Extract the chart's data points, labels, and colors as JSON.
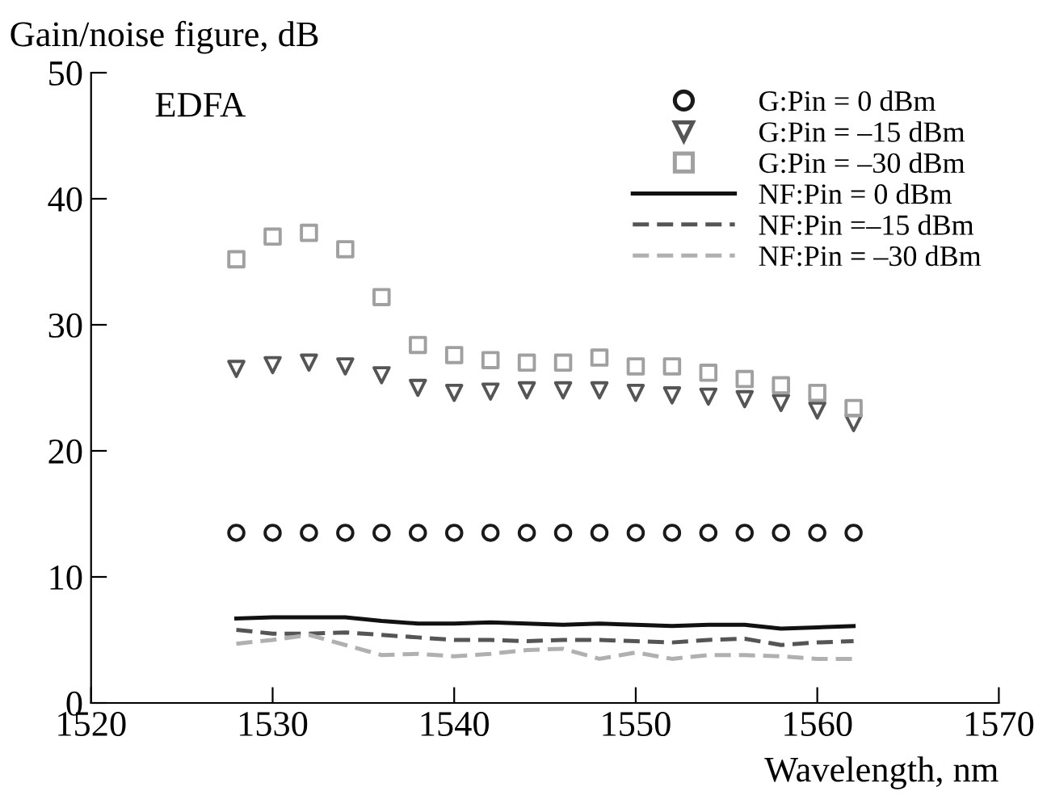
{
  "chart_data": {
    "type": "scatter",
    "xlabel": "Wavelength, nm",
    "ylabel": "Gain/noise figure, dB",
    "annotations": [
      "EDFA"
    ],
    "x": [
      1528,
      1530,
      1532,
      1534,
      1536,
      1538,
      1540,
      1542,
      1544,
      1546,
      1548,
      1550,
      1552,
      1554,
      1556,
      1558,
      1560,
      1562
    ],
    "xlim": [
      1520,
      1570
    ],
    "xticks": [
      1520,
      1530,
      1540,
      1550,
      1560,
      1570
    ],
    "ylim": [
      0,
      50
    ],
    "yticks": [
      0,
      10,
      20,
      30,
      40,
      50
    ],
    "grid": false,
    "legend": "top right",
    "series": [
      {
        "name": "G:Pin = 0 dBm",
        "marker": "circle",
        "color": "#1a1a1a",
        "values": [
          13.5,
          13.5,
          13.5,
          13.5,
          13.5,
          13.5,
          13.5,
          13.5,
          13.5,
          13.5,
          13.5,
          13.5,
          13.5,
          13.5,
          13.5,
          13.5,
          13.5,
          13.5
        ]
      },
      {
        "name": "G:Pin = –15 dBm",
        "marker": "triangle",
        "color": "#555555",
        "values": [
          26.5,
          26.8,
          27,
          26.7,
          26,
          25,
          24.6,
          24.7,
          24.8,
          24.8,
          24.8,
          24.6,
          24.4,
          24.3,
          24.1,
          23.8,
          23.2,
          22.2
        ]
      },
      {
        "name": "G:Pin = –30 dBm",
        "marker": "square",
        "color": "#a0a0a0",
        "values": [
          35.2,
          37,
          37.3,
          36,
          32.2,
          28.4,
          27.6,
          27.2,
          27,
          27,
          27.4,
          26.7,
          26.7,
          26.2,
          25.7,
          25.2,
          24.6,
          23.4
        ]
      },
      {
        "name": "NF:Pin = 0 dBm",
        "type": "line",
        "line_style": "solid",
        "color": "#111111",
        "values": [
          6.7,
          6.8,
          6.8,
          6.8,
          6.5,
          6.3,
          6.3,
          6.4,
          6.3,
          6.2,
          6.3,
          6.2,
          6.1,
          6.2,
          6.2,
          5.9,
          6.0,
          6.1
        ]
      },
      {
        "name": "NF:Pin =–15 dBm",
        "type": "line",
        "line_style": "dashed",
        "color": "#555555",
        "values": [
          5.8,
          5.5,
          5.5,
          5.6,
          5.4,
          5.2,
          5.0,
          5.0,
          4.9,
          5.0,
          5.0,
          4.9,
          4.8,
          5.0,
          5.1,
          4.6,
          4.8,
          4.9
        ]
      },
      {
        "name": "NF:Pin = –30 dBm",
        "type": "line",
        "line_style": "dashed",
        "color": "#b0b0b0",
        "values": [
          4.7,
          5.0,
          5.4,
          4.6,
          3.8,
          3.9,
          3.7,
          3.9,
          4.2,
          4.3,
          3.5,
          4.0,
          3.5,
          3.8,
          3.8,
          3.7,
          3.5,
          3.5
        ]
      }
    ]
  }
}
